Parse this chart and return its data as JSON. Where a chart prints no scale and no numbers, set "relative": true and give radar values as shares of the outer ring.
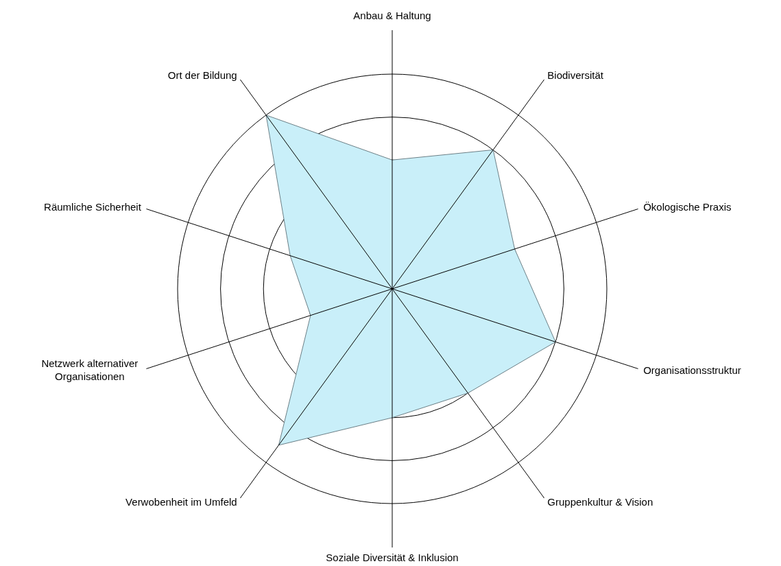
{
  "chart_data": {
    "type": "radar",
    "relative": true,
    "grid": true,
    "categories": [
      "Anbau & Haltung",
      "Biodiversität",
      "Ökologische Praxis",
      "Organisationsstruktur",
      "Gruppenkultur & Vision",
      "Soziale Diversität & Inklusion",
      "Verwobenheit im Umfeld",
      "Netzwerk alternativer Organisationen",
      "Räumliche Sicherheit",
      "Ort der Bildung"
    ],
    "series": [
      {
        "color": "#c9eff9",
        "values": [
          0.6,
          0.8,
          0.6,
          0.8,
          0.6,
          0.6,
          0.9,
          0.4,
          0.5,
          1.0
        ]
      }
    ]
  }
}
